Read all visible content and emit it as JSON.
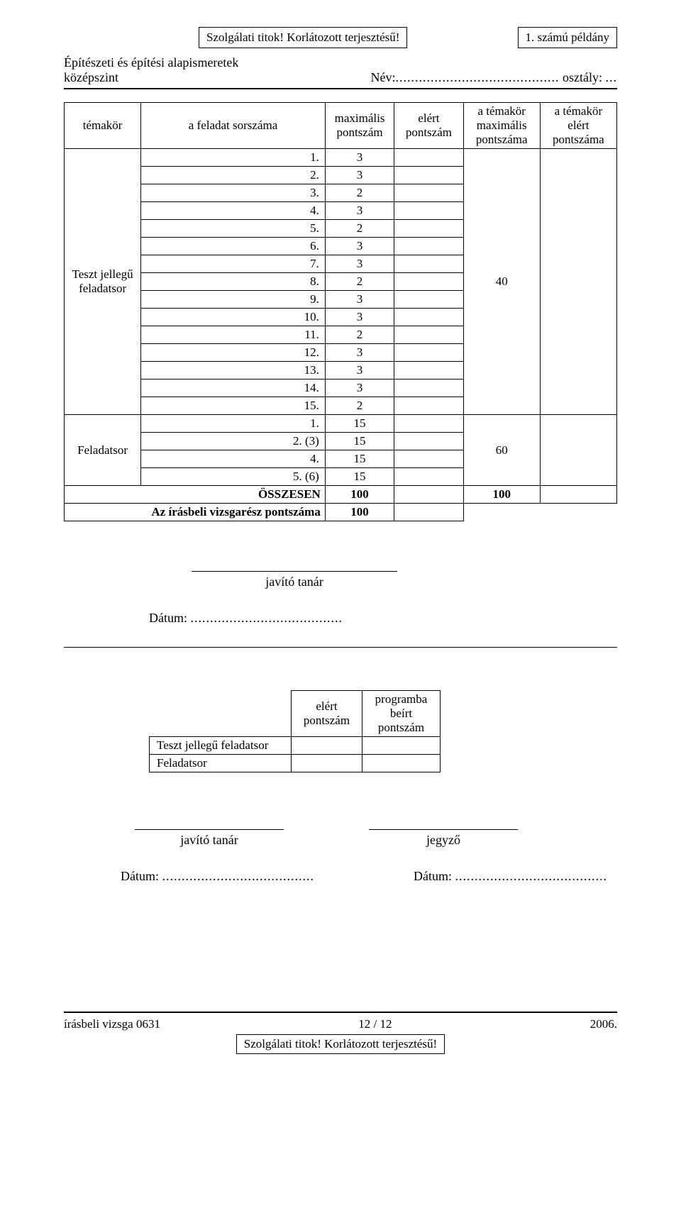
{
  "header": {
    "top_box_left": "Szolgálati titok! Korlátozott terjesztésű!",
    "top_box_right": "1. számú példány",
    "subject_line1": "Építészeti és építési alapismeretek",
    "subject_line2": "középszint",
    "name_label": "Név:",
    "class_label": "osztály:",
    "name_dots": "..........................................",
    "class_dots": "..."
  },
  "main_table": {
    "head": {
      "c1": "témakör",
      "c2": "a feladat sorszáma",
      "c3": "maximális pontszám",
      "c4": "elért pontszám",
      "c5": "a témakör maximális pontszáma",
      "c6": "a témakör elért pontszáma"
    },
    "group1": {
      "label": "Teszt jellegű feladatsor",
      "max_total": "40",
      "rows": [
        {
          "n": "1.",
          "v": "3"
        },
        {
          "n": "2.",
          "v": "3"
        },
        {
          "n": "3.",
          "v": "2"
        },
        {
          "n": "4.",
          "v": "3"
        },
        {
          "n": "5.",
          "v": "2"
        },
        {
          "n": "6.",
          "v": "3"
        },
        {
          "n": "7.",
          "v": "3"
        },
        {
          "n": "8.",
          "v": "2"
        },
        {
          "n": "9.",
          "v": "3"
        },
        {
          "n": "10.",
          "v": "3"
        },
        {
          "n": "11.",
          "v": "2"
        },
        {
          "n": "12.",
          "v": "3"
        },
        {
          "n": "13.",
          "v": "3"
        },
        {
          "n": "14.",
          "v": "3"
        },
        {
          "n": "15.",
          "v": "2"
        }
      ]
    },
    "group2": {
      "label": "Feladatsor",
      "max_total": "60",
      "rows": [
        {
          "n": "1.",
          "v": "15"
        },
        {
          "n": "2. (3)",
          "v": "15"
        },
        {
          "n": "4.",
          "v": "15"
        },
        {
          "n": "5. (6)",
          "v": "15"
        }
      ]
    },
    "sum_row": {
      "label": "ÖSSZESEN",
      "max": "100",
      "topic_max": "100"
    },
    "written_row": {
      "label": "Az írásbeli vizsgarész pontszáma",
      "val": "100"
    }
  },
  "sig1": {
    "label": "javító tanár",
    "date_label": "Dátum:",
    "date_dots": "......................................."
  },
  "small_table": {
    "col_b": "elért pontszám",
    "col_c": "programba beírt pontszám",
    "row1": "Teszt jellegű feladatsor",
    "row2": "Feladatsor"
  },
  "sig2": {
    "left": "javító tanár",
    "right": "jegyző",
    "date_label": "Dátum:",
    "date_dots": "......................................."
  },
  "footer": {
    "left": "írásbeli vizsga 0631",
    "center": "12 / 12",
    "right": "2006.",
    "box": "Szolgálati titok! Korlátozott terjesztésű!"
  }
}
